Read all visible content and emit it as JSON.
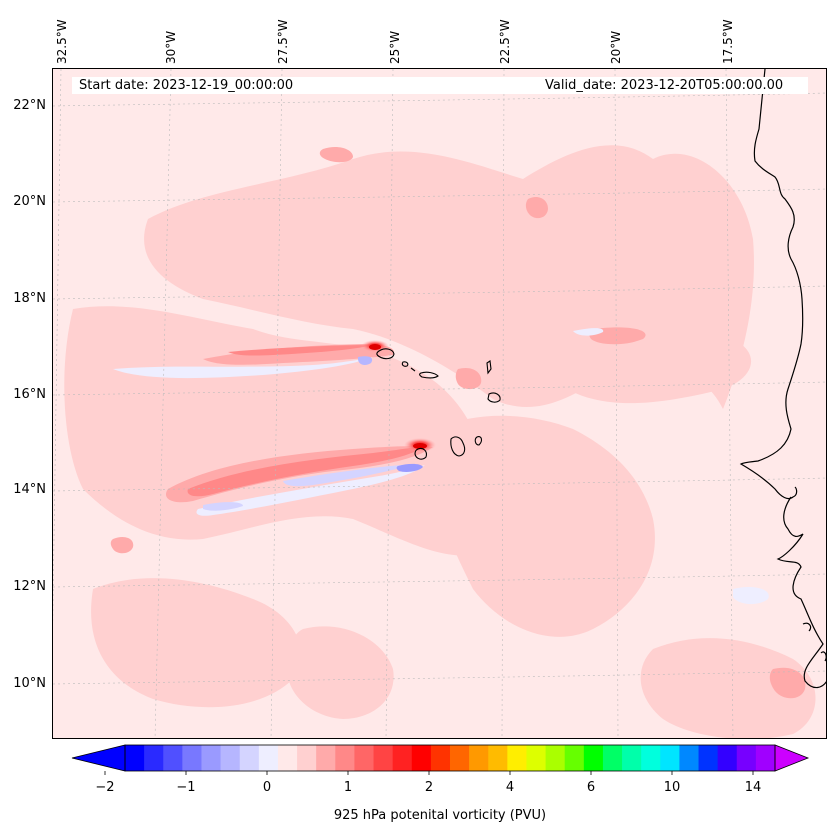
{
  "map": {
    "start_date": "Start date: 2023-12-19_00:00:00",
    "valid_date": "Valid_date: 2023-12-20T05:00:00.00",
    "longitude_labels": [
      "32.5°W",
      "30°W",
      "27.5°W",
      "25°W",
      "22.5°W",
      "20°W",
      "17.5°W"
    ],
    "latitude_labels": [
      "22°N",
      "20°N",
      "18°N",
      "16°N",
      "14°N",
      "12°N",
      "10°N"
    ],
    "background_color": "#ffe9e9",
    "coastline_color": "#000000"
  },
  "colorbar": {
    "label": "925 hPa potenital vorticity (PVU)",
    "tick_labels": [
      "−2",
      "−1",
      "0",
      "1",
      "2",
      "4",
      "6",
      "10",
      "14"
    ],
    "under_color": "#0000ff",
    "over_color": "#cc00ff",
    "colors": [
      "#0000ff",
      "#2a2aff",
      "#5050ff",
      "#7878ff",
      "#9a9aff",
      "#b6b6ff",
      "#d4d4ff",
      "#eeeeff",
      "#ffe9e9",
      "#ffd0d0",
      "#ffaaaa",
      "#ff8888",
      "#ff6666",
      "#ff4444",
      "#ff2222",
      "#ff0000",
      "#ff3300",
      "#ff6600",
      "#ff9900",
      "#ffbb00",
      "#ffee00",
      "#ddff00",
      "#aaff00",
      "#66ff00",
      "#00ff00",
      "#00ff66",
      "#00ffaa",
      "#00ffdd",
      "#00e5ff",
      "#0088ff",
      "#0033ff",
      "#3300ff",
      "#7700ff",
      "#a000ff"
    ]
  }
}
